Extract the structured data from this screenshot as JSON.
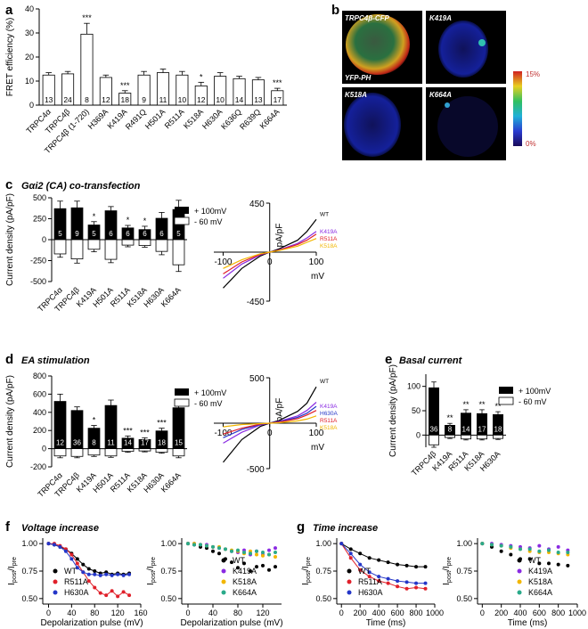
{
  "panels": {
    "a": "a",
    "b": "b",
    "c": "c",
    "d": "d",
    "e": "e",
    "f": "f",
    "g": "g"
  },
  "titles": {
    "c": "Gαi2 (CA) co-transfection",
    "d": "EA stimulation",
    "e": "Basal current",
    "f": "Voltage increase",
    "g": "Time increase"
  },
  "micro": {
    "labels": [
      "TRPC4β-CFP",
      "YFP-PH",
      "K419A",
      "K518A",
      "K664A"
    ],
    "scale_max": "15%",
    "scale_min": "0%"
  },
  "legend": {
    "pos": "+ 100mV",
    "neg": "- 60 mV"
  },
  "iv_axis": {
    "y": "pA/pF",
    "x": "mV"
  },
  "colors": {
    "WT": "#000000",
    "K419A": "#8a2be2",
    "R511A": "#e0202a",
    "K518A": "#f2b600",
    "H630A": "#2436c8",
    "K664A": "#2aaa8a"
  },
  "chart_data": [
    {
      "id": "a",
      "type": "bar",
      "ylabel": "FRET efficiency (%)",
      "ylim": [
        0,
        40
      ],
      "yticks": [
        0,
        10,
        20,
        30,
        40
      ],
      "categories": [
        "TRPC4α",
        "TRPC4β",
        "TRPC4β (1-720)",
        "H369A",
        "K419A",
        "R491Q",
        "H501A",
        "R511A",
        "K518A",
        "H630A",
        "K636Q",
        "R639Q",
        "K664A"
      ],
      "values": [
        12.5,
        13,
        29.5,
        11.5,
        5,
        12.5,
        13.5,
        12.5,
        8,
        12,
        11,
        10.5,
        6
      ],
      "errors": [
        1,
        1,
        4.5,
        1,
        1,
        1.5,
        1.5,
        1.5,
        1.5,
        1.5,
        1,
        1,
        1
      ],
      "n": [
        "13",
        "24",
        "8",
        "12",
        "18",
        "9",
        "11",
        "10",
        "12",
        "10",
        "14",
        "13",
        "17"
      ],
      "sig": [
        "",
        "",
        "***",
        "",
        "***",
        "",
        "",
        "",
        "*",
        "",
        "",
        "",
        "***"
      ]
    },
    {
      "id": "c-bars",
      "type": "bar",
      "ylabel": "Current density (pA/pF)",
      "ylim": [
        -500,
        500
      ],
      "yticks": [
        -500,
        -250,
        0,
        250,
        500
      ],
      "categories": [
        "TRPC4α",
        "TRPC4β",
        "K419A",
        "H501A",
        "R511A",
        "K518A",
        "H630A",
        "K664A"
      ],
      "series": [
        {
          "name": "+ 100mV",
          "values": [
            370,
            380,
            175,
            345,
            140,
            120,
            255,
            360
          ],
          "errors": [
            90,
            80,
            40,
            50,
            30,
            40,
            70,
            110
          ]
        },
        {
          "name": "- 60 mV",
          "values": [
            -170,
            -230,
            -115,
            -235,
            -65,
            -70,
            -140,
            -300
          ],
          "errors": [
            40,
            50,
            30,
            40,
            20,
            20,
            40,
            80
          ]
        }
      ],
      "n": [
        "5",
        "9",
        "5",
        "6",
        "6",
        "6",
        "6",
        "5"
      ],
      "sig": [
        "",
        "",
        "*",
        "",
        "*",
        "*",
        "",
        ""
      ]
    },
    {
      "id": "c-iv",
      "type": "line",
      "xticks": [
        -100,
        0,
        100
      ],
      "yticks": [
        -450,
        0,
        450
      ],
      "xlim": [
        -120,
        100
      ],
      "ylim": [
        -450,
        450
      ],
      "series": [
        {
          "name": "WT",
          "x": [
            -100,
            -60,
            -20,
            0,
            20,
            60,
            80,
            100
          ],
          "y": [
            -330,
            -150,
            -35,
            0,
            30,
            110,
            190,
            300
          ]
        },
        {
          "name": "K419A",
          "x": [
            -100,
            -60,
            -20,
            0,
            20,
            60,
            80,
            100
          ],
          "y": [
            -240,
            -110,
            -25,
            0,
            20,
            80,
            130,
            190
          ]
        },
        {
          "name": "R511A",
          "x": [
            -100,
            -60,
            -20,
            0,
            20,
            60,
            80,
            100
          ],
          "y": [
            -200,
            -90,
            -20,
            0,
            18,
            70,
            110,
            165
          ]
        },
        {
          "name": "K518A",
          "x": [
            -100,
            -60,
            -20,
            0,
            20,
            60,
            80,
            100
          ],
          "y": [
            -150,
            -70,
            -15,
            0,
            15,
            55,
            90,
            125
          ]
        }
      ]
    },
    {
      "id": "d-bars",
      "type": "bar",
      "ylabel": "Current density (pA/pF)",
      "ylim": [
        -200,
        800
      ],
      "yticks": [
        -200,
        0,
        200,
        400,
        600,
        800
      ],
      "categories": [
        "TRPC4α",
        "TRPC4β",
        "K419A",
        "H501A",
        "R511A",
        "K518A",
        "H630A",
        "K664A"
      ],
      "series": [
        {
          "name": "+ 100mV",
          "values": [
            520,
            420,
            225,
            475,
            115,
            100,
            195,
            450
          ],
          "errors": [
            80,
            40,
            30,
            60,
            25,
            20,
            30,
            70
          ]
        },
        {
          "name": "- 60 mV",
          "values": [
            -80,
            -85,
            -70,
            -80,
            -30,
            -25,
            -40,
            -80
          ],
          "errors": [
            20,
            15,
            15,
            15,
            10,
            10,
            10,
            20
          ]
        }
      ],
      "n": [
        "12",
        "36",
        "8",
        "11",
        "14",
        "17",
        "18",
        "15"
      ],
      "sig": [
        "",
        "",
        "*",
        "",
        "***",
        "***",
        "***",
        ""
      ]
    },
    {
      "id": "d-iv",
      "type": "line",
      "xticks": [
        -100,
        0,
        100
      ],
      "yticks": [
        -500,
        0,
        500
      ],
      "xlim": [
        -120,
        100
      ],
      "ylim": [
        -500,
        500
      ],
      "series": [
        {
          "name": "WT",
          "x": [
            -100,
            -60,
            -20,
            0,
            20,
            60,
            80,
            100
          ],
          "y": [
            -430,
            -180,
            -35,
            0,
            30,
            130,
            220,
            400
          ]
        },
        {
          "name": "K419A",
          "x": [
            -100,
            -60,
            -20,
            0,
            20,
            60,
            80,
            100
          ],
          "y": [
            -220,
            -100,
            -20,
            0,
            20,
            80,
            140,
            230
          ]
        },
        {
          "name": "H630A",
          "x": [
            -100,
            -60,
            -20,
            0,
            20,
            60,
            80,
            100
          ],
          "y": [
            -160,
            -70,
            -15,
            0,
            15,
            65,
            110,
            185
          ]
        },
        {
          "name": "R511A",
          "x": [
            -100,
            -60,
            -20,
            0,
            20,
            60,
            80,
            100
          ],
          "y": [
            -120,
            -55,
            -10,
            0,
            12,
            50,
            90,
            140
          ]
        },
        {
          "name": "K518A",
          "x": [
            -100,
            -60,
            -20,
            0,
            20,
            60,
            80,
            100
          ],
          "y": [
            -40,
            -15,
            -5,
            0,
            5,
            25,
            45,
            80
          ]
        }
      ]
    },
    {
      "id": "e",
      "type": "bar",
      "ylabel": "Current density (pA/pF)",
      "ylim": [
        -25,
        125
      ],
      "yticks": [
        0,
        50,
        100
      ],
      "categories": [
        "TRPC4β",
        "K419A",
        "R511A",
        "K518A",
        "H630A"
      ],
      "series": [
        {
          "name": "+ 100mV",
          "values": [
            97,
            20,
            45,
            44,
            42
          ],
          "errors": [
            12,
            4,
            7,
            8,
            6
          ]
        },
        {
          "name": "- 60 mV",
          "values": [
            -20,
            -5,
            -8,
            -8,
            -7
          ],
          "errors": [
            5,
            2,
            2,
            2,
            2
          ]
        }
      ],
      "n": [
        "36",
        "8",
        "14",
        "17",
        "18"
      ],
      "sig": [
        "",
        "**",
        "**",
        "**",
        "**"
      ]
    },
    {
      "id": "f-left",
      "type": "scatter",
      "ylabel": "Ipost/Ipre",
      "xlabel": "Depolarization pulse (mV)",
      "xlim": [
        -10,
        160
      ],
      "ylim": [
        0.45,
        1.05
      ],
      "xticks": [
        0,
        40,
        80,
        120,
        160
      ],
      "yticks": [
        0.5,
        0.75,
        1.0
      ],
      "series": [
        {
          "name": "WT",
          "x": [
            0,
            10,
            20,
            30,
            40,
            50,
            60,
            70,
            80,
            90,
            100,
            110,
            120,
            130,
            140
          ],
          "y": [
            1.0,
            0.99,
            0.97,
            0.95,
            0.91,
            0.86,
            0.81,
            0.77,
            0.75,
            0.73,
            0.74,
            0.72,
            0.73,
            0.72,
            0.73
          ]
        },
        {
          "name": "R511A",
          "x": [
            0,
            10,
            20,
            30,
            40,
            50,
            60,
            70,
            80,
            90,
            100,
            110,
            120,
            130,
            140
          ],
          "y": [
            1.0,
            1.0,
            0.98,
            0.95,
            0.9,
            0.82,
            0.74,
            0.66,
            0.6,
            0.55,
            0.53,
            0.57,
            0.52,
            0.56,
            0.53
          ]
        },
        {
          "name": "H630A",
          "x": [
            0,
            10,
            20,
            30,
            40,
            50,
            60,
            70,
            80,
            90,
            100,
            110,
            120,
            130,
            140
          ],
          "y": [
            1.0,
            0.99,
            0.97,
            0.93,
            0.86,
            0.78,
            0.74,
            0.72,
            0.72,
            0.71,
            0.72,
            0.71,
            0.72,
            0.71,
            0.72
          ]
        }
      ]
    },
    {
      "id": "f-right",
      "type": "scatter",
      "ylabel": "Ipost/Ipre",
      "xlabel": "Depolarization pulse (mV)",
      "xlim": [
        -10,
        150
      ],
      "ylim": [
        0.45,
        1.05
      ],
      "xticks": [
        0,
        40,
        80,
        120
      ],
      "yticks": [
        0.5,
        0.75,
        1.0
      ],
      "series": [
        {
          "name": "WT",
          "x": [
            0,
            10,
            20,
            30,
            40,
            50,
            60,
            70,
            80,
            90,
            100,
            110,
            120,
            130,
            140
          ],
          "y": [
            1.0,
            0.99,
            0.97,
            0.96,
            0.93,
            0.91,
            0.86,
            0.83,
            0.78,
            0.82,
            0.75,
            0.79,
            0.8,
            0.76,
            0.79
          ]
        },
        {
          "name": "K419A",
          "x": [
            0,
            10,
            20,
            30,
            40,
            50,
            60,
            70,
            80,
            90,
            100,
            110,
            120,
            130,
            140
          ],
          "y": [
            1.0,
            1.0,
            0.99,
            0.99,
            0.97,
            0.96,
            0.95,
            0.93,
            0.92,
            0.94,
            0.9,
            0.93,
            0.9,
            0.94,
            0.96
          ]
        },
        {
          "name": "K518A",
          "x": [
            0,
            10,
            20,
            30,
            40,
            50,
            60,
            70,
            80,
            90,
            100,
            110,
            120,
            130,
            140
          ],
          "y": [
            1.0,
            1.0,
            0.99,
            0.98,
            0.97,
            0.97,
            0.95,
            0.94,
            0.93,
            0.91,
            0.93,
            0.9,
            0.89,
            0.9,
            0.88
          ]
        },
        {
          "name": "K664A",
          "x": [
            0,
            10,
            20,
            30,
            40,
            50,
            60,
            70,
            80,
            90,
            100,
            110,
            120,
            130,
            140
          ],
          "y": [
            1.0,
            0.99,
            0.99,
            0.98,
            0.97,
            0.96,
            0.95,
            0.93,
            0.94,
            0.92,
            0.91,
            0.93,
            0.92,
            0.9,
            0.92
          ]
        }
      ]
    },
    {
      "id": "g-left",
      "type": "scatter",
      "ylabel": "Ipost/Ipre",
      "xlabel": "Time (ms)",
      "xlim": [
        -50,
        1000
      ],
      "ylim": [
        0.45,
        1.05
      ],
      "xticks": [
        0,
        200,
        400,
        600,
        800,
        1000
      ],
      "yticks": [
        0.5,
        0.75,
        1.0
      ],
      "series": [
        {
          "name": "WT",
          "x": [
            0,
            100,
            200,
            300,
            400,
            500,
            600,
            700,
            800,
            900
          ],
          "y": [
            1.0,
            0.95,
            0.91,
            0.87,
            0.85,
            0.83,
            0.81,
            0.8,
            0.79,
            0.79
          ]
        },
        {
          "name": "R511A",
          "x": [
            0,
            100,
            200,
            300,
            400,
            500,
            600,
            700,
            800,
            900
          ],
          "y": [
            1.0,
            0.87,
            0.76,
            0.7,
            0.66,
            0.64,
            0.61,
            0.59,
            0.6,
            0.59
          ]
        },
        {
          "name": "H630A",
          "x": [
            0,
            100,
            200,
            300,
            400,
            500,
            600,
            700,
            800,
            900
          ],
          "y": [
            1.0,
            0.91,
            0.81,
            0.74,
            0.7,
            0.68,
            0.66,
            0.65,
            0.64,
            0.64
          ]
        }
      ]
    },
    {
      "id": "g-right",
      "type": "scatter",
      "ylabel": "Ipost/Ipre",
      "xlabel": "Time (ms)",
      "xlim": [
        -50,
        1000
      ],
      "ylim": [
        0.45,
        1.05
      ],
      "xticks": [
        0,
        200,
        400,
        600,
        800,
        1000
      ],
      "yticks": [
        0.5,
        0.75,
        1.0
      ],
      "series": [
        {
          "name": "WT",
          "x": [
            0,
            100,
            200,
            300,
            400,
            500,
            600,
            700,
            800,
            900
          ],
          "y": [
            1.0,
            0.97,
            0.93,
            0.9,
            0.86,
            0.86,
            0.82,
            0.82,
            0.81,
            0.8
          ]
        },
        {
          "name": "K419A",
          "x": [
            0,
            100,
            200,
            300,
            400,
            500,
            600,
            700,
            800,
            900
          ],
          "y": [
            1.0,
            1.0,
            0.99,
            0.98,
            0.97,
            0.96,
            0.98,
            0.95,
            0.97,
            0.94
          ]
        },
        {
          "name": "K518A",
          "x": [
            0,
            100,
            200,
            300,
            400,
            500,
            600,
            700,
            800,
            900
          ],
          "y": [
            1.0,
            0.99,
            0.98,
            0.96,
            0.95,
            0.93,
            0.92,
            0.92,
            0.91,
            0.9
          ]
        },
        {
          "name": "K664A",
          "x": [
            0,
            100,
            200,
            300,
            400,
            500,
            600,
            700,
            800,
            900
          ],
          "y": [
            1.0,
            0.99,
            0.98,
            0.97,
            0.95,
            0.95,
            0.93,
            0.94,
            0.92,
            0.92
          ]
        }
      ]
    }
  ]
}
